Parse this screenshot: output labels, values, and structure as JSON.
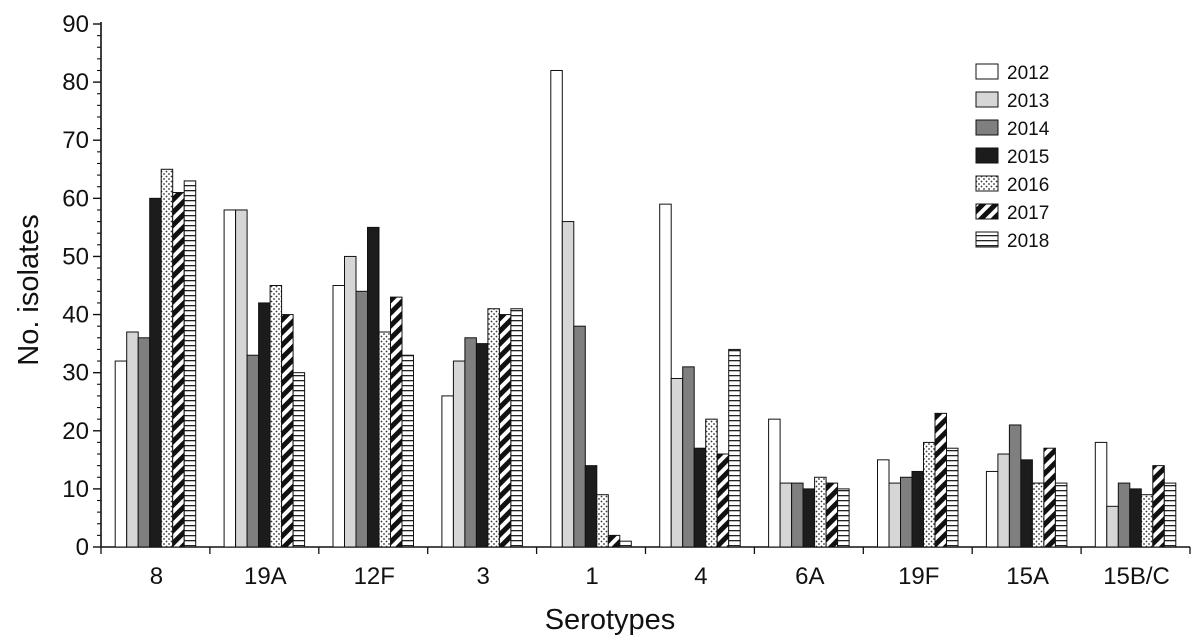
{
  "chart_data": {
    "type": "bar",
    "title": "",
    "xlabel": "Serotypes",
    "ylabel": "No. isolates",
    "ylim": [
      0,
      90
    ],
    "yticks": [
      0,
      10,
      20,
      30,
      40,
      50,
      60,
      70,
      80,
      90
    ],
    "grid": false,
    "legend_position": "top-right",
    "categories": [
      "8",
      "19A",
      "12F",
      "3",
      "1",
      "4",
      "6A",
      "19F",
      "15A",
      "15B/C"
    ],
    "series": [
      {
        "name": "2012",
        "pattern": "white",
        "values": [
          32,
          58,
          45,
          26,
          82,
          59,
          22,
          15,
          13,
          18
        ]
      },
      {
        "name": "2013",
        "pattern": "light-gray",
        "values": [
          37,
          58,
          50,
          32,
          56,
          29,
          11,
          11,
          16,
          7
        ]
      },
      {
        "name": "2014",
        "pattern": "mid-gray",
        "values": [
          36,
          33,
          44,
          36,
          38,
          31,
          11,
          12,
          21,
          11
        ]
      },
      {
        "name": "2015",
        "pattern": "black",
        "values": [
          60,
          42,
          55,
          35,
          14,
          17,
          10,
          13,
          15,
          10
        ]
      },
      {
        "name": "2016",
        "pattern": "dotted",
        "values": [
          65,
          45,
          37,
          41,
          9,
          22,
          12,
          18,
          11,
          9
        ]
      },
      {
        "name": "2017",
        "pattern": "diagonal-stripes",
        "values": [
          61,
          40,
          43,
          40,
          2,
          16,
          11,
          23,
          17,
          14
        ]
      },
      {
        "name": "2018",
        "pattern": "horizontal-stripes",
        "values": [
          63,
          30,
          33,
          41,
          1,
          34,
          10,
          17,
          11,
          11
        ]
      }
    ]
  }
}
